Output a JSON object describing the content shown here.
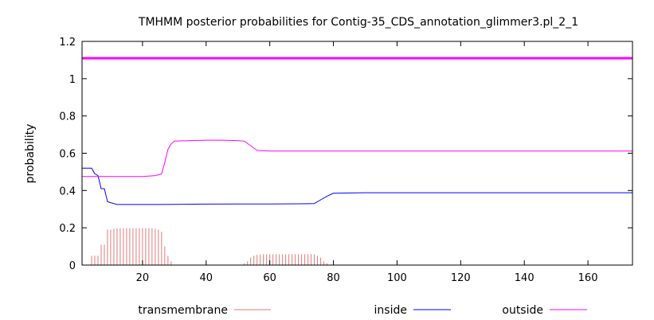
{
  "chart_data": {
    "type": "line",
    "title": "TMHMM posterior probabilities for Contig-35_CDS_annotation_glimmer3.pl_2_1",
    "xlabel": "",
    "ylabel": "probability",
    "xlim": [
      1,
      174
    ],
    "ylim": [
      0,
      1.2
    ],
    "x_ticks": [
      20,
      40,
      60,
      80,
      100,
      120,
      140,
      160
    ],
    "y_ticks": [
      0,
      0.2,
      0.4,
      0.6,
      0.8,
      1,
      1.2
    ],
    "y_tick_labels": [
      "0",
      "0.2",
      "0.4",
      "0.6",
      "0.8",
      "1",
      "1.2"
    ],
    "grid": false,
    "legend_position": "bottom",
    "colors": {
      "transmembrane": "#e07a7a",
      "inside": "#0000ff",
      "outside": "#ff00ff",
      "band": "#ff00ff"
    },
    "top_band_value": 1.11,
    "series": [
      {
        "name": "transmembrane",
        "style": "impulses",
        "x": [
          4,
          5,
          6,
          7,
          8,
          9,
          10,
          11,
          12,
          13,
          14,
          15,
          16,
          17,
          18,
          19,
          20,
          21,
          22,
          23,
          24,
          25,
          26,
          27,
          28,
          29,
          52,
          53,
          54,
          55,
          56,
          57,
          58,
          59,
          60,
          61,
          62,
          63,
          64,
          65,
          66,
          67,
          68,
          69,
          70,
          71,
          72,
          73,
          74,
          75,
          76,
          77,
          78
        ],
        "values": [
          0.05,
          0.05,
          0.05,
          0.11,
          0.11,
          0.19,
          0.19,
          0.195,
          0.197,
          0.198,
          0.198,
          0.198,
          0.198,
          0.198,
          0.198,
          0.198,
          0.198,
          0.198,
          0.198,
          0.197,
          0.195,
          0.19,
          0.18,
          0.1,
          0.05,
          0.02,
          0.01,
          0.02,
          0.04,
          0.05,
          0.055,
          0.057,
          0.058,
          0.058,
          0.058,
          0.058,
          0.058,
          0.058,
          0.058,
          0.058,
          0.058,
          0.058,
          0.058,
          0.058,
          0.058,
          0.058,
          0.058,
          0.058,
          0.058,
          0.05,
          0.04,
          0.02,
          0.01
        ]
      },
      {
        "name": "inside",
        "style": "line",
        "x": [
          1,
          4,
          5,
          6,
          7,
          8,
          9,
          10,
          11,
          12,
          15,
          20,
          25,
          30,
          40,
          50,
          60,
          70,
          74,
          76,
          78,
          80,
          90,
          100,
          120,
          140,
          160,
          174
        ],
        "values": [
          0.52,
          0.52,
          0.49,
          0.48,
          0.41,
          0.41,
          0.34,
          0.335,
          0.33,
          0.325,
          0.325,
          0.325,
          0.325,
          0.326,
          0.327,
          0.328,
          0.328,
          0.329,
          0.33,
          0.35,
          0.37,
          0.385,
          0.388,
          0.388,
          0.388,
          0.388,
          0.388,
          0.388
        ]
      },
      {
        "name": "outside",
        "style": "line",
        "x": [
          1,
          10,
          15,
          20,
          24,
          26,
          27,
          28,
          29,
          30,
          35,
          40,
          45,
          50,
          52,
          54,
          56,
          60,
          70,
          80,
          100,
          120,
          140,
          160,
          174
        ],
        "values": [
          0.475,
          0.475,
          0.475,
          0.475,
          0.48,
          0.49,
          0.55,
          0.62,
          0.65,
          0.665,
          0.668,
          0.67,
          0.67,
          0.668,
          0.665,
          0.64,
          0.615,
          0.612,
          0.612,
          0.612,
          0.612,
          0.612,
          0.612,
          0.612,
          0.612
        ]
      }
    ]
  }
}
